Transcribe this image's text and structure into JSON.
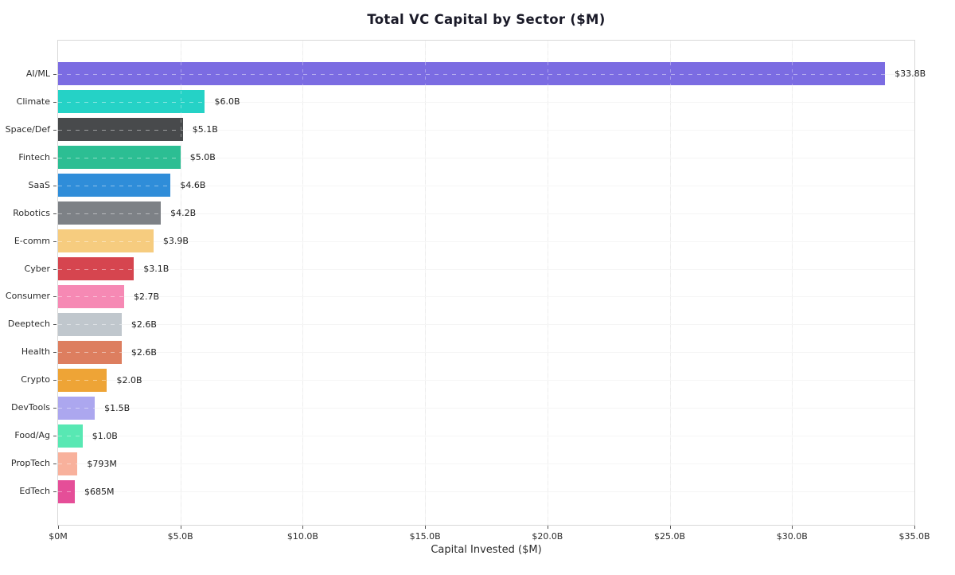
{
  "chart_data": {
    "type": "bar",
    "orientation": "horizontal",
    "title": "Total VC Capital by Sector ($M)",
    "xlabel": "Capital Invested ($M)",
    "ylabel": "",
    "categories": [
      "AI/ML",
      "Climate",
      "Space/Def",
      "Fintech",
      "SaaS",
      "Robotics",
      "E-comm",
      "Cyber",
      "Consumer",
      "Deeptech",
      "Health",
      "Crypto",
      "DevTools",
      "Food/Ag",
      "PropTech",
      "EdTech"
    ],
    "values_millions": [
      33800,
      6000,
      5100,
      5000,
      4600,
      4200,
      3900,
      3100,
      2700,
      2600,
      2600,
      2000,
      1500,
      1000,
      793,
      685
    ],
    "value_labels": [
      "$33.8B",
      "$6.0B",
      "$5.1B",
      "$5.0B",
      "$4.6B",
      "$4.2B",
      "$3.9B",
      "$3.1B",
      "$2.7B",
      "$2.6B",
      "$2.6B",
      "$2.0B",
      "$1.5B",
      "$1.0B",
      "$793M",
      "$685M"
    ],
    "bar_colors": [
      "#7B6CE2",
      "#25D2C6",
      "#484A4C",
      "#2CBE93",
      "#2F8DD9",
      "#7D8186",
      "#F6CC7F",
      "#D6454F",
      "#F689B4",
      "#C0C7CD",
      "#DD7E5F",
      "#EEA436",
      "#ACA7EF",
      "#58E8B3",
      "#F8B19C",
      "#E54E98"
    ],
    "xlim": [
      0,
      35000
    ],
    "x_ticks": [
      {
        "value": 0,
        "label": "$0M"
      },
      {
        "value": 5000,
        "label": "$5.0B"
      },
      {
        "value": 10000,
        "label": "$10.0B"
      },
      {
        "value": 15000,
        "label": "$15.0B"
      },
      {
        "value": 20000,
        "label": "$20.0B"
      },
      {
        "value": 25000,
        "label": "$25.0B"
      },
      {
        "value": 30000,
        "label": "$30.0B"
      },
      {
        "value": 35000,
        "label": "$35.0B"
      }
    ],
    "grid": true,
    "legend": false
  }
}
